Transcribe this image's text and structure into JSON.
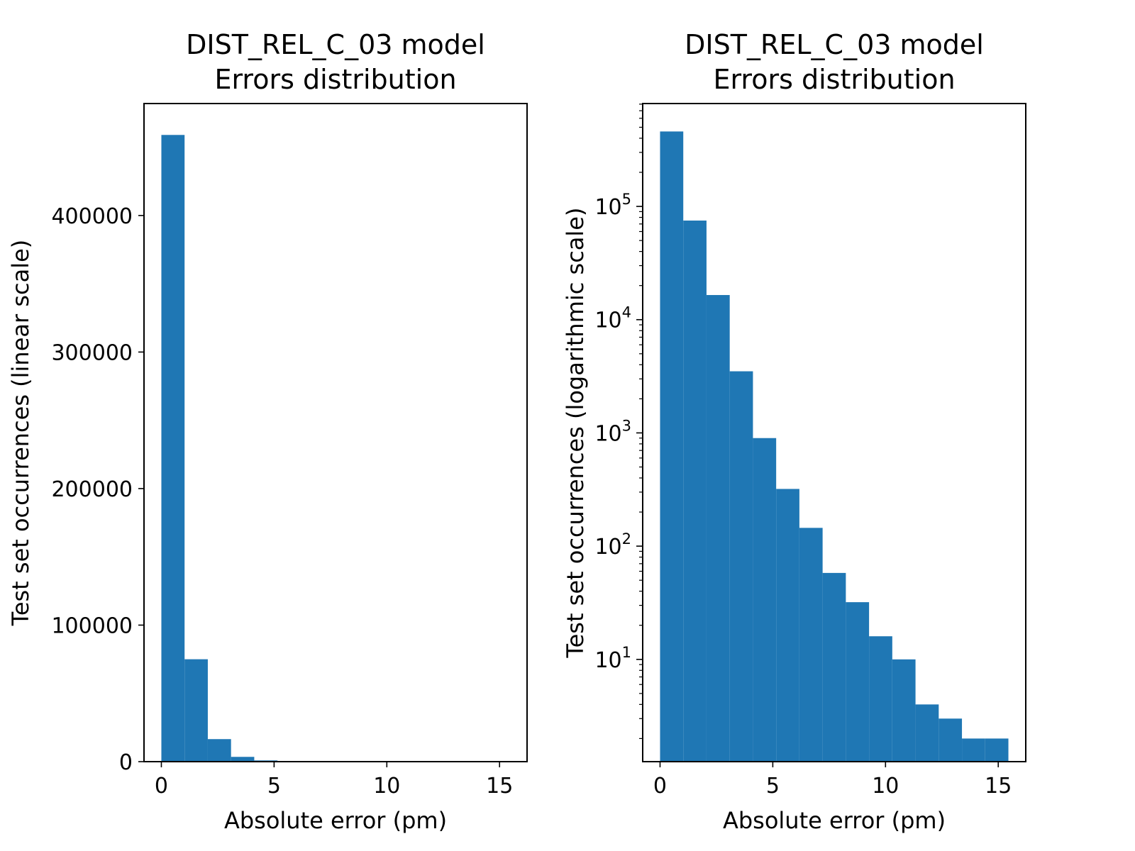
{
  "chart_data": [
    {
      "type": "bar",
      "title": [
        "DIST_REL_C_03 model",
        "Errors distribution"
      ],
      "xlabel": "Absolute error (pm)",
      "ylabel": "Test set occurrences (linear scale)",
      "yscale": "linear",
      "xlim": [
        -0.77,
        16.22
      ],
      "ylim": [
        0,
        482000
      ],
      "xticks": [
        0,
        5,
        10,
        15
      ],
      "xtick_labels": [
        "0",
        "5",
        "10",
        "15"
      ],
      "yticks": [
        0,
        100000,
        200000,
        300000,
        400000
      ],
      "ytick_labels": [
        "0",
        "100000",
        "200000",
        "300000",
        "400000"
      ],
      "bin_edges": [
        0,
        1.03,
        2.06,
        3.09,
        4.12,
        5.15,
        6.18,
        7.21,
        8.24,
        9.27,
        10.3,
        11.33,
        12.36,
        13.39,
        14.42,
        15.45
      ],
      "values": [
        459000,
        75000,
        16500,
        3500,
        900,
        320,
        145,
        58,
        32,
        16,
        10,
        4,
        3,
        2,
        2
      ],
      "bar_color": "#1f77b4",
      "grid": false
    },
    {
      "type": "bar",
      "title": [
        "DIST_REL_C_03 model",
        "Errors distribution"
      ],
      "xlabel": "Absolute error (pm)",
      "ylabel": "Test set occurrences (logarithmic scale)",
      "yscale": "log",
      "xlim": [
        -0.77,
        16.22
      ],
      "ylim": [
        1.25,
        810000
      ],
      "xticks": [
        0,
        5,
        10,
        15
      ],
      "xtick_labels": [
        "0",
        "5",
        "10",
        "15"
      ],
      "yticks": [
        10,
        100,
        1000,
        10000,
        100000
      ],
      "ytick_labels": [
        {
          "base": "10",
          "exp": "1"
        },
        {
          "base": "10",
          "exp": "2"
        },
        {
          "base": "10",
          "exp": "3"
        },
        {
          "base": "10",
          "exp": "4"
        },
        {
          "base": "10",
          "exp": "5"
        }
      ],
      "bin_edges": [
        0,
        1.03,
        2.06,
        3.09,
        4.12,
        5.15,
        6.18,
        7.21,
        8.24,
        9.27,
        10.3,
        11.33,
        12.36,
        13.39,
        14.42,
        15.45
      ],
      "values": [
        459000,
        75000,
        16500,
        3500,
        900,
        320,
        145,
        58,
        32,
        16,
        10,
        4,
        3,
        2,
        2
      ],
      "bar_color": "#1f77b4",
      "grid": false
    }
  ]
}
